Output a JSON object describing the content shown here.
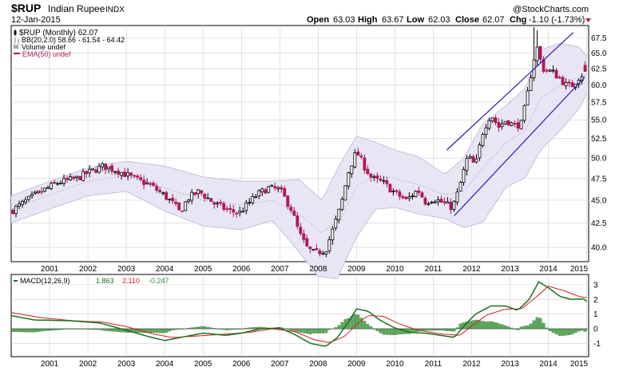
{
  "header": {
    "symbol": "$RUP",
    "name": "Indian Rupee",
    "exchange": "INDX",
    "date": "12-Jan-2015",
    "open_label": "Open",
    "open": "63.03",
    "high_label": "High",
    "high": "63.67",
    "low_label": "Low",
    "low": "62.03",
    "close_label": "Close",
    "close": "62.07",
    "chg_label": "Chg",
    "chg": "-1.10 (-1.73%)",
    "watermark": "@StockCharts.com"
  },
  "legend": {
    "price": "$RUP (Monthly) 62.07",
    "bb": "BB(20,2.0) 58.66 - 61.54 - 64.42",
    "volume": "Volume undef",
    "ema": "EMA(50) undef"
  },
  "macd_legend": {
    "label": "MACD(12,26,9)",
    "macd": "1.863",
    "signal": "2.110",
    "hist": "-0.247"
  },
  "colors": {
    "up": "#000000",
    "down": "#b0185a",
    "band_fill": "#e8e6f4",
    "band_line": "#b9b6d6",
    "channel": "#1f1fbf",
    "macd_line": "#1f6e1f",
    "signal_line": "#cc1f1f",
    "hist_fill": "#5aa85a",
    "grid": "#cfcfcf"
  },
  "chart_data": [
    {
      "type": "candlestick",
      "x_ticks": [
        "2001",
        "2002",
        "2003",
        "2004",
        "2005",
        "2006",
        "2007",
        "2008",
        "2009",
        "2010",
        "2011",
        "2012",
        "2013",
        "2014",
        "2015"
      ],
      "y_ticks": [
        40.0,
        42.5,
        45.0,
        47.5,
        50.0,
        52.5,
        55.0,
        57.5,
        60.0,
        62.5,
        65.0,
        67.5
      ],
      "ylim": [
        38.6,
        69.6
      ],
      "xlim": [
        2000.0,
        2015.05
      ],
      "scale": "log",
      "price_anchors": [
        [
          2000.0,
          43.8
        ],
        [
          2000.6,
          45.5
        ],
        [
          2001.2,
          47.0
        ],
        [
          2001.7,
          47.5
        ],
        [
          2002.0,
          48.2
        ],
        [
          2002.4,
          49.0
        ],
        [
          2002.8,
          48.4
        ],
        [
          2003.2,
          47.5
        ],
        [
          2003.6,
          46.8
        ],
        [
          2004.0,
          45.5
        ],
        [
          2004.25,
          44.5
        ],
        [
          2004.4,
          43.6
        ],
        [
          2004.6,
          45.2
        ],
        [
          2004.9,
          46.0
        ],
        [
          2005.3,
          44.6
        ],
        [
          2005.7,
          43.8
        ],
        [
          2005.95,
          43.6
        ],
        [
          2006.4,
          45.6
        ],
        [
          2006.7,
          46.4
        ],
        [
          2007.0,
          46.2
        ],
        [
          2007.3,
          44.0
        ],
        [
          2007.5,
          41.5
        ],
        [
          2007.7,
          40.0
        ],
        [
          2007.9,
          39.4
        ],
        [
          2008.2,
          39.8
        ],
        [
          2008.4,
          42.0
        ],
        [
          2008.6,
          44.5
        ],
        [
          2008.8,
          48.5
        ],
        [
          2009.0,
          50.8
        ],
        [
          2009.2,
          49.0
        ],
        [
          2009.4,
          47.5
        ],
        [
          2009.7,
          47.0
        ],
        [
          2010.0,
          45.8
        ],
        [
          2010.3,
          45.0
        ],
        [
          2010.6,
          46.2
        ],
        [
          2010.8,
          44.8
        ],
        [
          2011.0,
          45.2
        ],
        [
          2011.3,
          44.6
        ],
        [
          2011.5,
          44.2
        ],
        [
          2011.65,
          46.0
        ],
        [
          2011.9,
          50.2
        ],
        [
          2012.1,
          49.0
        ],
        [
          2012.3,
          53.5
        ],
        [
          2012.5,
          55.8
        ],
        [
          2012.7,
          54.0
        ],
        [
          2012.9,
          55.0
        ],
        [
          2013.1,
          54.2
        ],
        [
          2013.3,
          54.5
        ],
        [
          2013.45,
          58.5
        ],
        [
          2013.6,
          63.5
        ],
        [
          2013.7,
          66.0
        ],
        [
          2013.85,
          62.5
        ],
        [
          2014.1,
          62.0
        ],
        [
          2014.3,
          61.0
        ],
        [
          2014.45,
          60.0
        ],
        [
          2014.6,
          59.8
        ],
        [
          2014.8,
          61.2
        ],
        [
          2015.0,
          62.07
        ]
      ],
      "bollinger": {
        "upper_anchors": [
          [
            2000.0,
            45.5
          ],
          [
            2002.0,
            48.8
          ],
          [
            2003.0,
            49.6
          ],
          [
            2004.0,
            49.0
          ],
          [
            2005.0,
            47.7
          ],
          [
            2006.0,
            47.2
          ],
          [
            2006.8,
            47.2
          ],
          [
            2007.5,
            47.4
          ],
          [
            2008.1,
            45.0
          ],
          [
            2008.6,
            49.5
          ],
          [
            2009.0,
            52.8
          ],
          [
            2009.5,
            52.0
          ],
          [
            2010.0,
            51.0
          ],
          [
            2010.6,
            50.2
          ],
          [
            2011.3,
            48.0
          ],
          [
            2011.8,
            50.0
          ],
          [
            2012.3,
            54.5
          ],
          [
            2012.9,
            57.0
          ],
          [
            2013.4,
            59.5
          ],
          [
            2013.8,
            65.5
          ],
          [
            2014.3,
            66.6
          ],
          [
            2014.8,
            66.0
          ],
          [
            2015.0,
            64.4
          ]
        ],
        "lower_anchors": [
          [
            2000.0,
            42.5
          ],
          [
            2002.0,
            45.5
          ],
          [
            2003.0,
            46.0
          ],
          [
            2004.0,
            43.8
          ],
          [
            2005.0,
            42.2
          ],
          [
            2006.0,
            41.8
          ],
          [
            2006.8,
            42.8
          ],
          [
            2007.4,
            40.0
          ],
          [
            2008.0,
            37.2
          ],
          [
            2008.5,
            37.0
          ],
          [
            2009.0,
            41.0
          ],
          [
            2009.5,
            44.0
          ],
          [
            2010.0,
            44.2
          ],
          [
            2010.6,
            43.5
          ],
          [
            2011.3,
            43.0
          ],
          [
            2011.8,
            42.0
          ],
          [
            2012.3,
            42.6
          ],
          [
            2012.9,
            46.5
          ],
          [
            2013.4,
            47.6
          ],
          [
            2013.8,
            51.0
          ],
          [
            2014.3,
            53.5
          ],
          [
            2014.8,
            56.5
          ],
          [
            2015.0,
            58.7
          ]
        ],
        "mid_anchors": [
          [
            2000.0,
            44.0
          ],
          [
            2002.0,
            47.2
          ],
          [
            2003.0,
            47.8
          ],
          [
            2004.0,
            46.4
          ],
          [
            2005.0,
            45.0
          ],
          [
            2006.0,
            44.5
          ],
          [
            2006.8,
            45.0
          ],
          [
            2007.5,
            43.5
          ],
          [
            2008.1,
            41.5
          ],
          [
            2008.6,
            43.0
          ],
          [
            2009.0,
            46.5
          ],
          [
            2009.5,
            48.0
          ],
          [
            2010.0,
            47.5
          ],
          [
            2010.6,
            46.8
          ],
          [
            2011.3,
            45.6
          ],
          [
            2011.8,
            46.0
          ],
          [
            2012.3,
            48.8
          ],
          [
            2012.9,
            52.0
          ],
          [
            2013.4,
            53.5
          ],
          [
            2013.8,
            58.0
          ],
          [
            2014.3,
            60.0
          ],
          [
            2014.8,
            61.2
          ],
          [
            2015.0,
            61.54
          ]
        ]
      },
      "channel": {
        "upper": [
          [
            2011.35,
            51.0
          ],
          [
            2014.65,
            68.4
          ]
        ],
        "lower": [
          [
            2011.55,
            43.3
          ],
          [
            2014.95,
            61.2
          ]
        ]
      }
    },
    {
      "type": "line",
      "ylim": [
        -1.9,
        3.7
      ],
      "y_ticks": [
        -1,
        0,
        1,
        2,
        3
      ],
      "x_ticks": [
        "2001",
        "2002",
        "2003",
        "2004",
        "2005",
        "2006",
        "2007",
        "2008",
        "2009",
        "2010",
        "2011",
        "2012",
        "2013",
        "2014",
        "2015"
      ],
      "series": [
        {
          "name": "MACD",
          "anchors": [
            [
              2000.0,
              0.9
            ],
            [
              2000.6,
              0.6
            ],
            [
              2001.5,
              0.55
            ],
            [
              2002.3,
              0.4
            ],
            [
              2003.0,
              -0.1
            ],
            [
              2003.6,
              -0.55
            ],
            [
              2004.0,
              -0.8
            ],
            [
              2004.5,
              -0.55
            ],
            [
              2005.0,
              -0.3
            ],
            [
              2005.6,
              -0.45
            ],
            [
              2006.0,
              -0.3
            ],
            [
              2006.5,
              0.0
            ],
            [
              2007.0,
              0.05
            ],
            [
              2007.4,
              -0.4
            ],
            [
              2007.8,
              -1.0
            ],
            [
              2008.2,
              -1.2
            ],
            [
              2008.5,
              -0.6
            ],
            [
              2008.8,
              0.5
            ],
            [
              2009.0,
              1.35
            ],
            [
              2009.3,
              1.2
            ],
            [
              2009.6,
              0.6
            ],
            [
              2010.0,
              0.05
            ],
            [
              2010.4,
              -0.25
            ],
            [
              2010.8,
              -0.3
            ],
            [
              2011.2,
              -0.45
            ],
            [
              2011.55,
              -0.6
            ],
            [
              2011.8,
              0.2
            ],
            [
              2012.1,
              1.0
            ],
            [
              2012.5,
              1.55
            ],
            [
              2012.9,
              1.55
            ],
            [
              2013.2,
              1.25
            ],
            [
              2013.5,
              2.0
            ],
            [
              2013.75,
              3.2
            ],
            [
              2014.0,
              2.8
            ],
            [
              2014.3,
              2.2
            ],
            [
              2014.6,
              2.0
            ],
            [
              2014.9,
              2.05
            ],
            [
              2015.0,
              1.863
            ]
          ]
        },
        {
          "name": "Signal",
          "anchors": [
            [
              2000.0,
              1.1
            ],
            [
              2000.8,
              0.75
            ],
            [
              2001.6,
              0.55
            ],
            [
              2002.4,
              0.45
            ],
            [
              2003.0,
              0.15
            ],
            [
              2003.7,
              -0.35
            ],
            [
              2004.2,
              -0.6
            ],
            [
              2004.8,
              -0.5
            ],
            [
              2005.5,
              -0.38
            ],
            [
              2006.2,
              -0.25
            ],
            [
              2006.8,
              0.0
            ],
            [
              2007.4,
              -0.2
            ],
            [
              2007.9,
              -0.75
            ],
            [
              2008.3,
              -0.95
            ],
            [
              2008.7,
              -0.5
            ],
            [
              2009.0,
              0.3
            ],
            [
              2009.3,
              0.9
            ],
            [
              2009.7,
              0.85
            ],
            [
              2010.1,
              0.35
            ],
            [
              2010.6,
              -0.1
            ],
            [
              2011.2,
              -0.35
            ],
            [
              2011.7,
              -0.45
            ],
            [
              2012.0,
              0.2
            ],
            [
              2012.4,
              0.95
            ],
            [
              2012.9,
              1.35
            ],
            [
              2013.3,
              1.35
            ],
            [
              2013.7,
              2.2
            ],
            [
              2014.0,
              2.9
            ],
            [
              2014.4,
              2.6
            ],
            [
              2014.8,
              2.2
            ],
            [
              2015.0,
              2.11
            ]
          ]
        }
      ]
    }
  ]
}
